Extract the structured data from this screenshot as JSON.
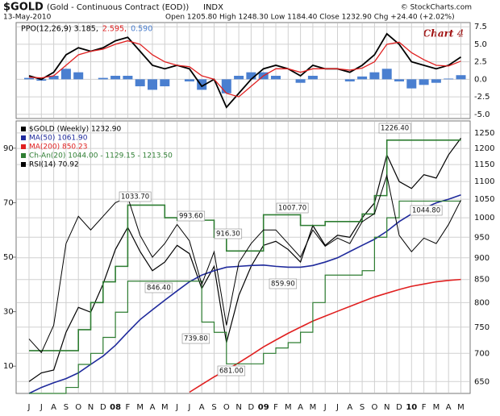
{
  "header": {
    "symbol": "$GOLD",
    "name": "(Gold - Continuous Contract (EOD))",
    "exchange": "INDX",
    "date": "13-May-2010",
    "quote": "Open 1205.80  High 1248.30  Low 1184.40  Close 1232.90  Chg +24.40 (+2.02%)",
    "credit": "© StockCharts.com"
  },
  "chart_data": [
    {
      "type": "line",
      "annotation": "Chart 4",
      "ylim": [
        -5.6,
        8.1
      ],
      "yticks": [
        {
          "value": 7.5,
          "label": "7.5"
        },
        {
          "value": 5,
          "label": "5.0"
        },
        {
          "value": 2.5,
          "label": "2.5"
        },
        {
          "value": 0,
          "label": "0.0"
        },
        {
          "value": -2.5,
          "label": "-2.5"
        },
        {
          "value": -5,
          "label": "-5.0"
        }
      ],
      "series": [
        {
          "name": "PPO(12,26,9) 3.185,",
          "color": "#000000",
          "values": [
            0.5,
            0,
            1,
            3.5,
            4.5,
            4,
            4.5,
            5.5,
            6,
            4,
            2,
            1.5,
            2,
            1.5,
            -1,
            0,
            -4,
            -2,
            0,
            1.5,
            2,
            1.5,
            0.5,
            2,
            1.5,
            1.5,
            1,
            2,
            3.5,
            6.5,
            5,
            2.5,
            2,
            1.5,
            2,
            3.185
          ]
        },
        {
          "name": "2.595,",
          "color": "#e02020",
          "values": [
            0.3,
            0.2,
            0.5,
            2,
            3.5,
            4,
            4.3,
            5,
            5.5,
            5,
            3.5,
            2.5,
            2,
            1.8,
            0.5,
            0,
            -2,
            -2.5,
            -1,
            0.5,
            1.5,
            1.5,
            1,
            1.5,
            1.5,
            1.5,
            1.3,
            1.6,
            2.5,
            5,
            5.3,
            3.8,
            2.8,
            2,
            1.9,
            2.595
          ]
        },
        {
          "name": "0.590",
          "color": "#4a7fd0",
          "type": "bar",
          "values": [
            0.2,
            -0.2,
            0.5,
            1.5,
            1,
            0,
            0.2,
            0.5,
            0.5,
            -1,
            -1.5,
            -1,
            0,
            -0.3,
            -1.5,
            0,
            -2,
            0.5,
            1,
            1,
            0.5,
            0,
            -0.5,
            0.5,
            0,
            0,
            -0.3,
            0.4,
            1,
            1.5,
            -0.3,
            -1.3,
            -0.8,
            -0.5,
            0.1,
            0.59
          ]
        }
      ]
    },
    {
      "type": "line",
      "log_scale": true,
      "categories": [
        "J",
        "J",
        "A",
        "S",
        "O",
        "N",
        "D",
        "08",
        "F",
        "M",
        "A",
        "M",
        "J",
        "J",
        "A",
        "S",
        "O",
        "N",
        "D",
        "09",
        "F",
        "M",
        "A",
        "M",
        "J",
        "J",
        "A",
        "S",
        "O",
        "N",
        "D",
        "10",
        "F",
        "M",
        "A",
        "M"
      ],
      "ylim": [
        630,
        1290
      ],
      "yticks": [
        650,
        700,
        750,
        800,
        850,
        900,
        950,
        1000,
        1050,
        1100,
        1150,
        1200,
        1250
      ],
      "y2lim": [
        0,
        100
      ],
      "y2ticks": [
        10,
        30,
        50,
        70,
        90
      ],
      "series": [
        {
          "name": "$GOLD (Weekly) 1232.90",
          "color": "#000000",
          "values": [
            650,
            665,
            670,
            740,
            790,
            780,
            840,
            920,
            975,
            915,
            870,
            890,
            930,
            910,
            830,
            880,
            720,
            815,
            880,
            930,
            940,
            920,
            890,
            980,
            930,
            955,
            950,
            1000,
            1040,
            1180,
            1100,
            1080,
            1120,
            1110,
            1180,
            1232.9
          ]
        },
        {
          "name": "MA(50) 1061.90",
          "color": "#1f2a9c",
          "values": [
            630,
            640,
            648,
            655,
            665,
            680,
            695,
            715,
            740,
            765,
            785,
            805,
            825,
            845,
            860,
            870,
            878,
            880,
            882,
            883,
            880,
            878,
            878,
            882,
            890,
            900,
            915,
            930,
            945,
            965,
            990,
            1010,
            1025,
            1040,
            1050,
            1061.9
          ]
        },
        {
          "name": "MA(200) 850.23",
          "color": "#e02020",
          "values": [
            null,
            null,
            null,
            null,
            null,
            null,
            null,
            null,
            null,
            null,
            null,
            null,
            null,
            632,
            645,
            658,
            670,
            683,
            697,
            712,
            725,
            738,
            750,
            762,
            772,
            782,
            792,
            802,
            812,
            820,
            828,
            835,
            840,
            845,
            848,
            850.23
          ]
        },
        {
          "name": "Ch-An(20) 1044.00 - 1129.15 - 1213.50",
          "color": "#2e7d32",
          "step": true,
          "values": [
            705,
            705,
            705,
            705,
            745,
            800,
            845,
            880,
            1033.7,
            1033.7,
            1033.7,
            1000,
            993.6,
            993.6,
            993.6,
            950,
            916.3,
            916.3,
            916.3,
            1007.7,
            1007.7,
            1007.7,
            980,
            980,
            990,
            990,
            990,
            1010,
            1060,
            1226.4,
            1226.4,
            1226.4,
            1226.4,
            1226.4,
            1226.4,
            1226.4
          ],
          "lower": [
            630,
            630,
            630,
            640,
            680,
            700,
            730,
            780,
            846.4,
            846.4,
            846.4,
            846.4,
            846.4,
            846.4,
            760,
            739.8,
            681,
            681,
            681,
            700,
            710,
            720,
            740,
            800,
            859.9,
            859.9,
            859.9,
            870,
            950,
            1000,
            1044.8,
            1044.8,
            1044.8,
            1044.8,
            1044.8,
            1044.8
          ]
        },
        {
          "name": "RSI(14) 70.92",
          "color": "#000000",
          "axis": "y2",
          "values": [
            20,
            15,
            25,
            55,
            65,
            60,
            65,
            70,
            72,
            58,
            50,
            55,
            62,
            56,
            40,
            52,
            25,
            48,
            55,
            60,
            60,
            55,
            50,
            60,
            54,
            57,
            55,
            63,
            66,
            80,
            58,
            52,
            57,
            55,
            62,
            70.92
          ]
        }
      ],
      "annotations": [
        "1033.70",
        "993.60",
        "916.30",
        "1007.70",
        "1226.40",
        "846.40",
        "739.80",
        "681.00",
        "859.90",
        "1044.80"
      ]
    }
  ]
}
